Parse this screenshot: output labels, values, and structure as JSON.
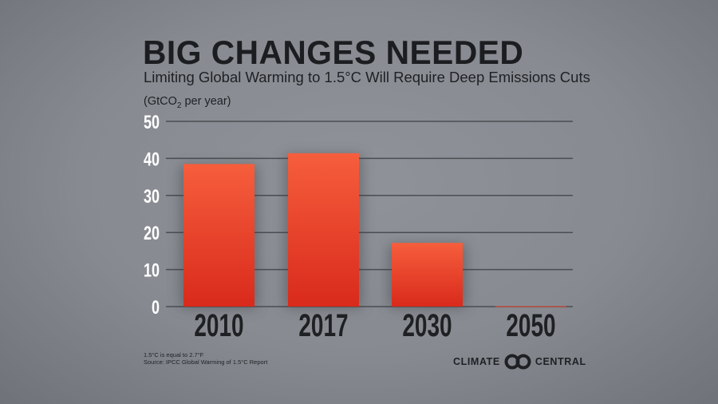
{
  "header": {
    "title": "BIG CHANGES NEEDED",
    "subtitle": "Limiting Global Warming to 1.5°C Will Require Deep Emissions Cuts"
  },
  "chart_data": {
    "type": "bar",
    "title": "BIG CHANGES NEEDED",
    "subtitle": "Limiting Global Warming to 1.5°C Will Require Deep Emissions Cuts",
    "ylabel": "(GtCO2 per year)",
    "ylabel_parts": {
      "pre": "(GtCO",
      "sub": "2",
      "post": " per year)"
    },
    "categories": [
      "2010",
      "2017",
      "2030",
      "2050"
    ],
    "values": [
      38.5,
      41.4,
      17.2,
      0.1
    ],
    "ylim": [
      0,
      50
    ],
    "yticks": [
      "0",
      "10",
      "20",
      "30",
      "40",
      "50"
    ],
    "grid": true,
    "colors": {
      "bar_top": "#f65e3c",
      "bar_bottom": "#d92a1c",
      "grid": "#4a4d52"
    }
  },
  "footer": {
    "note": "1.5°C is equal to 2.7°F",
    "source": "Source: IPCC Global Warming of 1.5°C Report"
  },
  "logo": {
    "left": "CLIMATE",
    "right": "CENTRAL",
    "icon": "linked-circles-icon"
  }
}
